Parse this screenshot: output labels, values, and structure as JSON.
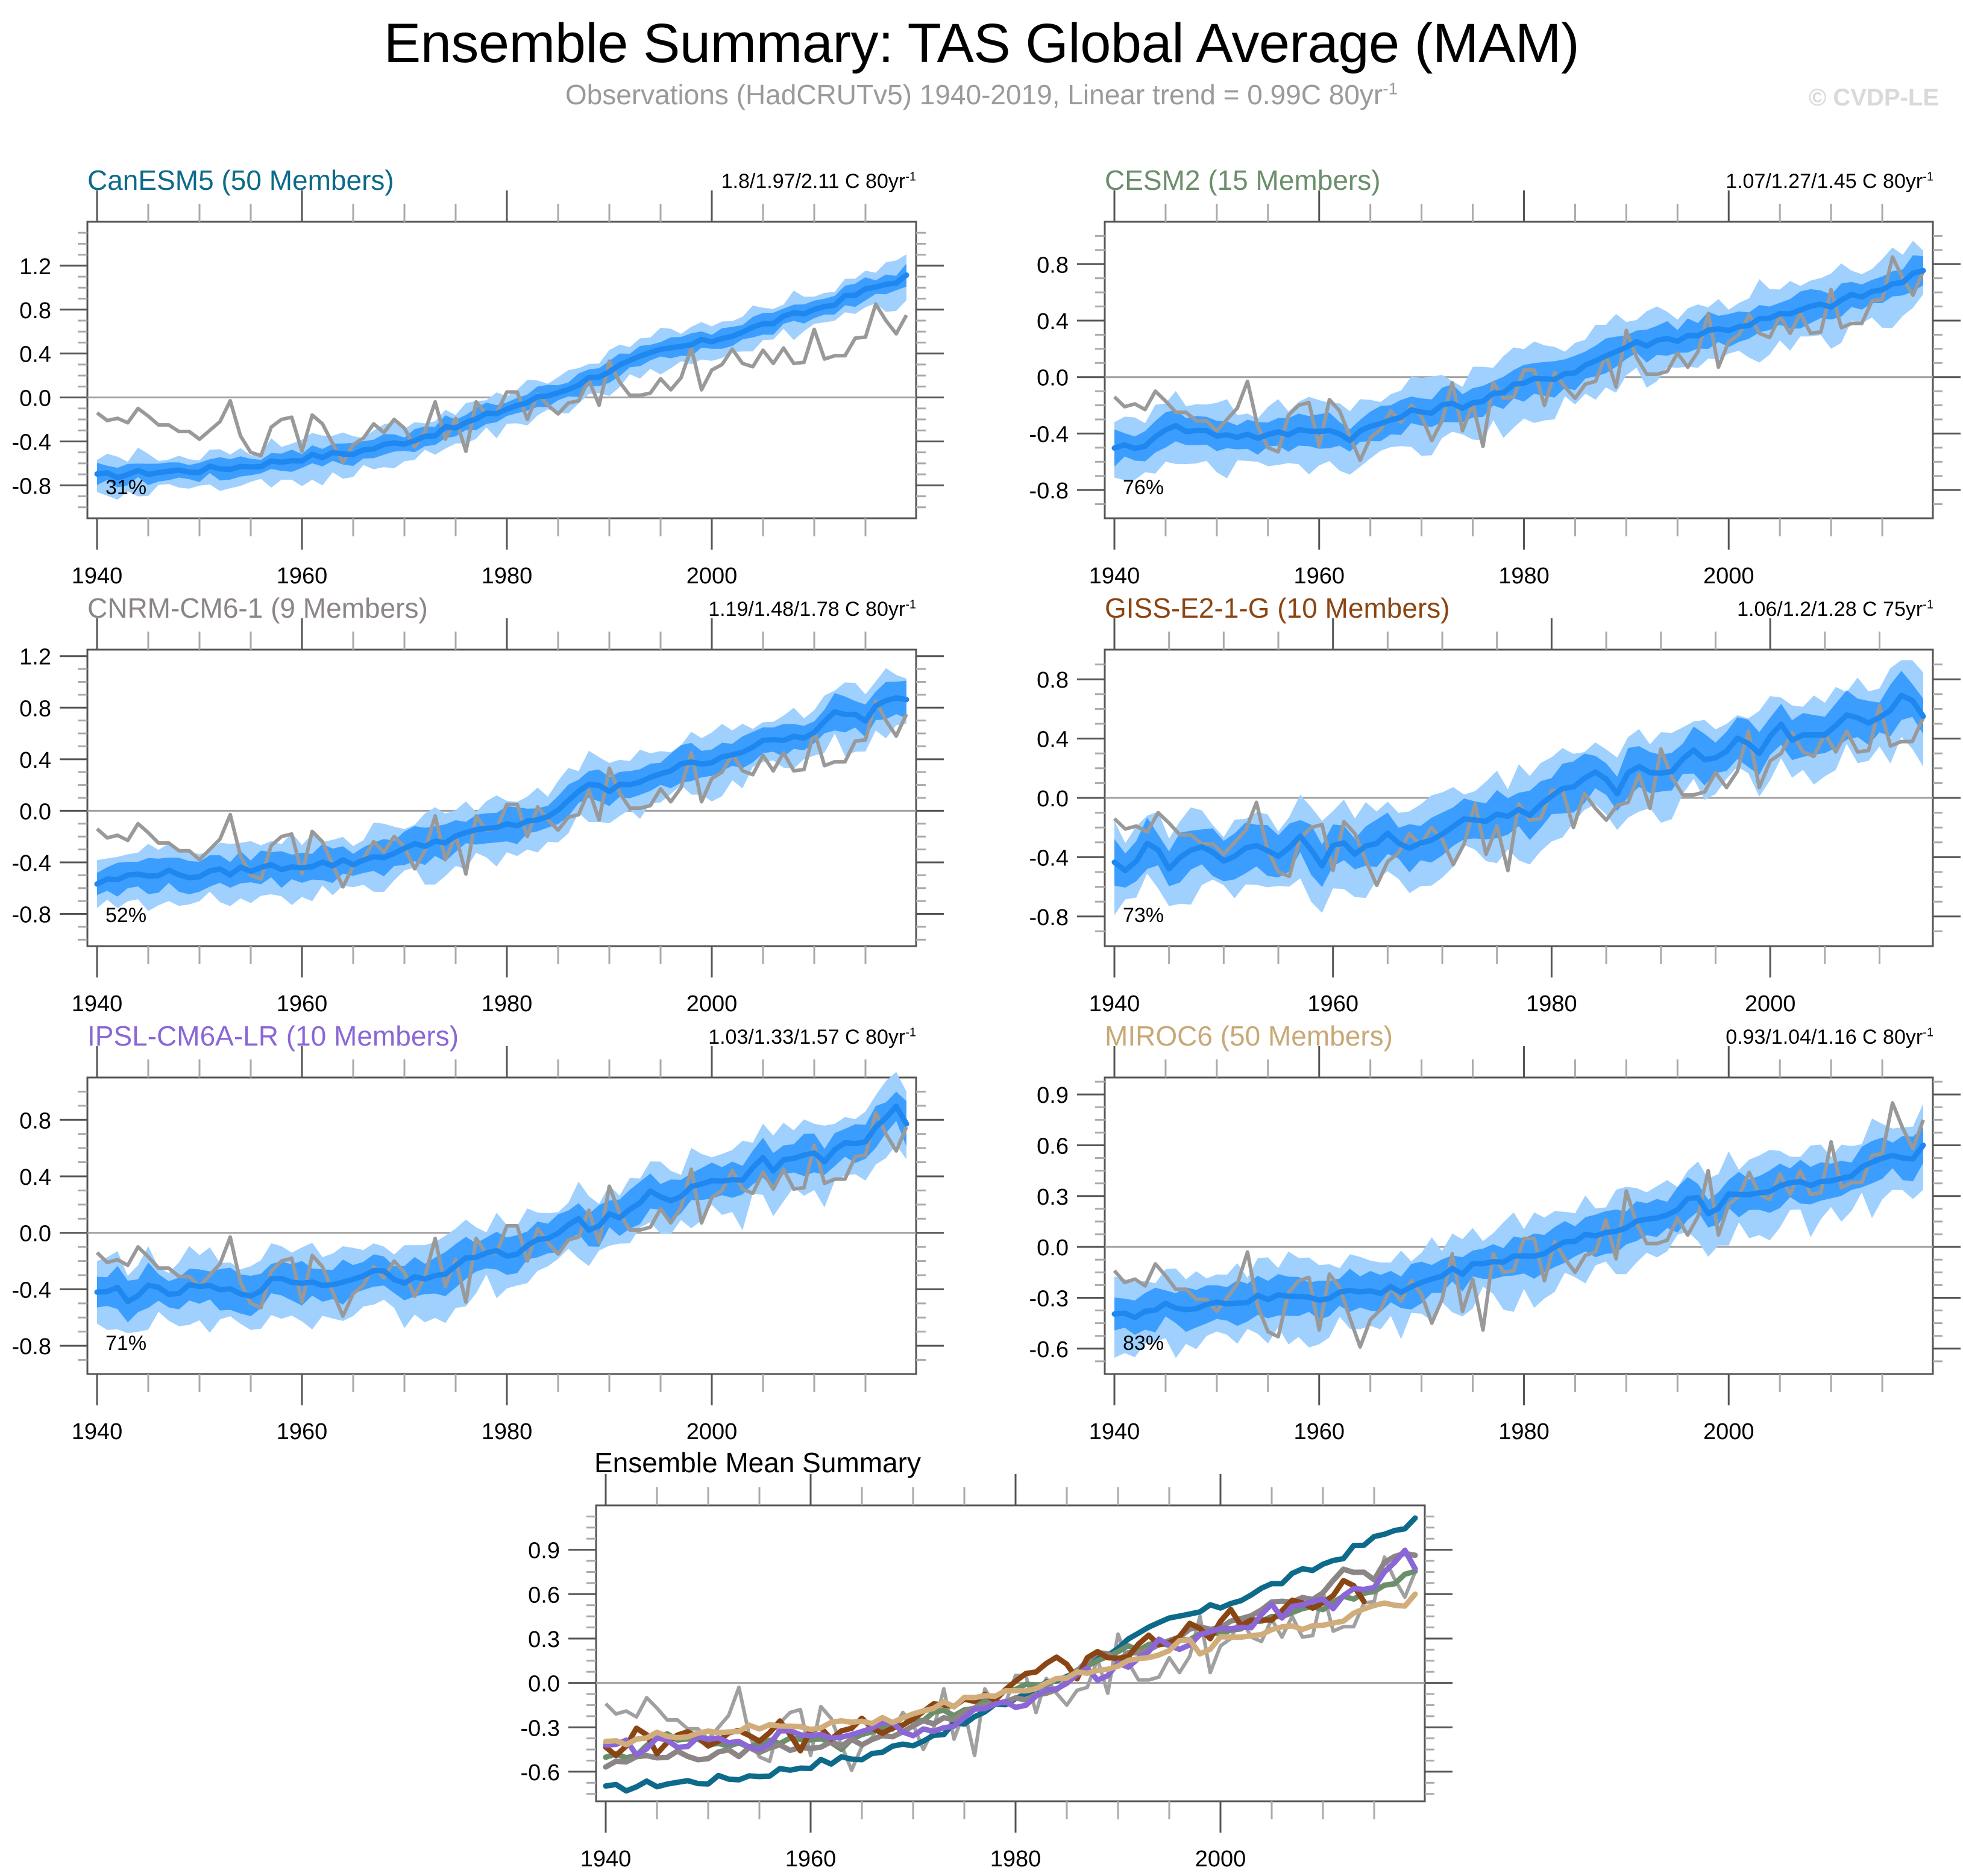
{
  "title": "Ensemble Summary: TAS Global Average (MAM)",
  "subtitle": "Observations (HadCRUTv5) 1940-2019, Linear trend = 0.99C 80yr",
  "subtitle_sup": "-1",
  "credit": "© CVDP-LE",
  "colors": {
    "band_outer": "#9fd0fe",
    "band_inner": "#3b9efe",
    "mean_line": "#1e88f0",
    "obs_line": "#999999",
    "zero_line": "#a0a0a0"
  },
  "chart_data": [
    {
      "type": "area",
      "name": "CanESM5",
      "title": "CanESM5 (50 Members)",
      "title_color": "#0d6a8a",
      "trend_text": "1.8/1.97/2.11 C 80yr",
      "trend_sup": "-1",
      "pct": "31%",
      "x_start": 1940,
      "x_end": 2019,
      "xticks": [
        "1940",
        "1960",
        "1980",
        "2000"
      ],
      "ylim": [
        -1.1,
        1.6
      ],
      "yticks": [
        "1.2",
        "0.8",
        "0.4",
        "0.0",
        "-0.4",
        "-0.8"
      ],
      "mean_knots": [
        [
          1940,
          -0.72
        ],
        [
          1945,
          -0.68
        ],
        [
          1950,
          -0.66
        ],
        [
          1955,
          -0.62
        ],
        [
          1960,
          -0.55
        ],
        [
          1965,
          -0.5
        ],
        [
          1970,
          -0.4
        ],
        [
          1975,
          -0.27
        ],
        [
          1980,
          -0.1
        ],
        [
          1985,
          0.05
        ],
        [
          1990,
          0.25
        ],
        [
          1995,
          0.42
        ],
        [
          2000,
          0.52
        ],
        [
          2005,
          0.66
        ],
        [
          2010,
          0.8
        ],
        [
          2015,
          0.97
        ],
        [
          2019,
          1.1
        ]
      ],
      "inner_halfwidth": 0.08,
      "outer_halfwidth": 0.15,
      "ylimits_order": "mean"
    },
    {
      "type": "area",
      "name": "CESM2",
      "title": "CESM2 (15 Members)",
      "title_color": "#6b8e6b",
      "trend_text": "1.07/1.27/1.45 C 80yr",
      "trend_sup": "-1",
      "pct": "76%",
      "x_start": 1940,
      "x_end": 2019,
      "xticks": [
        "1940",
        "1960",
        "1980",
        "2000"
      ],
      "ylim": [
        -1.0,
        1.1
      ],
      "yticks": [
        "0.8",
        "0.4",
        "0.0",
        "-0.4",
        "-0.8"
      ],
      "mean_knots": [
        [
          1940,
          -0.48
        ],
        [
          1942,
          -0.52
        ],
        [
          1945,
          -0.35
        ],
        [
          1950,
          -0.4
        ],
        [
          1955,
          -0.42
        ],
        [
          1960,
          -0.36
        ],
        [
          1963,
          -0.42
        ],
        [
          1967,
          -0.3
        ],
        [
          1970,
          -0.24
        ],
        [
          1975,
          -0.18
        ],
        [
          1980,
          -0.05
        ],
        [
          1985,
          0.05
        ],
        [
          1990,
          0.22
        ],
        [
          1995,
          0.28
        ],
        [
          2000,
          0.35
        ],
        [
          2005,
          0.43
        ],
        [
          2010,
          0.52
        ],
        [
          2015,
          0.62
        ],
        [
          2019,
          0.75
        ]
      ],
      "inner_halfwidth": 0.1,
      "outer_halfwidth": 0.2
    },
    {
      "type": "area",
      "name": "CNRM-CM6-1",
      "title": "CNRM-CM6-1 (9 Members)",
      "title_color": "#8c8585",
      "trend_text": "1.19/1.48/1.78 C 80yr",
      "trend_sup": "-1",
      "pct": "52%",
      "x_start": 1940,
      "x_end": 2019,
      "xticks": [
        "1940",
        "1960",
        "1980",
        "2000"
      ],
      "ylim": [
        -1.05,
        1.25
      ],
      "yticks": [
        "1.2",
        "0.8",
        "0.4",
        "0.0",
        "-0.4",
        "-0.8"
      ],
      "mean_knots": [
        [
          1940,
          -0.56
        ],
        [
          1945,
          -0.48
        ],
        [
          1950,
          -0.5
        ],
        [
          1955,
          -0.45
        ],
        [
          1960,
          -0.42
        ],
        [
          1965,
          -0.4
        ],
        [
          1970,
          -0.3
        ],
        [
          1975,
          -0.2
        ],
        [
          1980,
          -0.12
        ],
        [
          1985,
          -0.02
        ],
        [
          1988,
          0.22
        ],
        [
          1990,
          0.15
        ],
        [
          1995,
          0.3
        ],
        [
          2000,
          0.4
        ],
        [
          2005,
          0.52
        ],
        [
          2010,
          0.6
        ],
        [
          2012,
          0.75
        ],
        [
          2015,
          0.72
        ],
        [
          2017,
          0.88
        ],
        [
          2019,
          0.87
        ]
      ],
      "inner_halfwidth": 0.11,
      "outer_halfwidth": 0.19
    },
    {
      "type": "area",
      "name": "GISS-E2-1-G",
      "title": "GISS-E2-1-G (10 Members)",
      "title_color": "#8b4513",
      "trend_text": "1.06/1.2/1.28 C 75yr",
      "trend_sup": "-1",
      "pct": "73%",
      "x_start": 1940,
      "x_end": 2014,
      "xticks": [
        "1940",
        "1960",
        "1980",
        "2000"
      ],
      "ylim": [
        -1.0,
        1.0
      ],
      "yticks": [
        "0.8",
        "0.4",
        "0.0",
        "-0.4",
        "-0.8"
      ],
      "mean_knots": [
        [
          1940,
          -0.44
        ],
        [
          1941,
          -0.5
        ],
        [
          1943,
          -0.3
        ],
        [
          1945,
          -0.45
        ],
        [
          1948,
          -0.32
        ],
        [
          1950,
          -0.42
        ],
        [
          1953,
          -0.32
        ],
        [
          1955,
          -0.4
        ],
        [
          1957,
          -0.25
        ],
        [
          1959,
          -0.45
        ],
        [
          1960,
          -0.3
        ],
        [
          1962,
          -0.35
        ],
        [
          1965,
          -0.25
        ],
        [
          1967,
          -0.35
        ],
        [
          1970,
          -0.27
        ],
        [
          1972,
          -0.15
        ],
        [
          1975,
          -0.12
        ],
        [
          1978,
          -0.1
        ],
        [
          1980,
          0.04
        ],
        [
          1982,
          0.07
        ],
        [
          1984,
          0.18
        ],
        [
          1986,
          0.05
        ],
        [
          1988,
          0.24
        ],
        [
          1990,
          0.16
        ],
        [
          1993,
          0.3
        ],
        [
          1995,
          0.27
        ],
        [
          1997,
          0.4
        ],
        [
          1999,
          0.28
        ],
        [
          2001,
          0.5
        ],
        [
          2002,
          0.4
        ],
        [
          2005,
          0.45
        ],
        [
          2007,
          0.58
        ],
        [
          2009,
          0.5
        ],
        [
          2012,
          0.68
        ],
        [
          2014,
          0.58
        ]
      ],
      "inner_halfwidth": 0.13,
      "outer_halfwidth": 0.22
    },
    {
      "type": "area",
      "name": "IPSL-CM6A-LR",
      "title": "IPSL-CM6A-LR (10 Members)",
      "title_color": "#8a66d6",
      "trend_text": "1.03/1.33/1.57 C 80yr",
      "trend_sup": "-1",
      "pct": "71%",
      "x_start": 1940,
      "x_end": 2019,
      "xticks": [
        "1940",
        "1960",
        "1980",
        "2000"
      ],
      "ylim": [
        -1.0,
        1.1
      ],
      "yticks": [
        "0.8",
        "0.4",
        "0.0",
        "-0.4",
        "-0.8"
      ],
      "mean_knots": [
        [
          1940,
          -0.44
        ],
        [
          1942,
          -0.4
        ],
        [
          1943,
          -0.46
        ],
        [
          1945,
          -0.4
        ],
        [
          1947,
          -0.43
        ],
        [
          1950,
          -0.38
        ],
        [
          1953,
          -0.42
        ],
        [
          1955,
          -0.42
        ],
        [
          1957,
          -0.35
        ],
        [
          1960,
          -0.34
        ],
        [
          1963,
          -0.37
        ],
        [
          1965,
          -0.31
        ],
        [
          1968,
          -0.27
        ],
        [
          1970,
          -0.34
        ],
        [
          1973,
          -0.28
        ],
        [
          1975,
          -0.25
        ],
        [
          1977,
          -0.15
        ],
        [
          1980,
          -0.15
        ],
        [
          1983,
          -0.07
        ],
        [
          1985,
          0.0
        ],
        [
          1987,
          0.12
        ],
        [
          1988,
          0.0
        ],
        [
          1990,
          0.12
        ],
        [
          1992,
          0.14
        ],
        [
          1994,
          0.28
        ],
        [
          1996,
          0.2
        ],
        [
          1998,
          0.35
        ],
        [
          2000,
          0.35
        ],
        [
          2003,
          0.4
        ],
        [
          2005,
          0.55
        ],
        [
          2006,
          0.45
        ],
        [
          2009,
          0.58
        ],
        [
          2011,
          0.52
        ],
        [
          2013,
          0.65
        ],
        [
          2015,
          0.65
        ],
        [
          2017,
          0.8
        ],
        [
          2018,
          0.87
        ],
        [
          2019,
          0.8
        ]
      ],
      "inner_halfwidth": 0.12,
      "outer_halfwidth": 0.2
    },
    {
      "type": "area",
      "name": "MIROC6",
      "title": "MIROC6 (50 Members)",
      "title_color": "#c9a877",
      "trend_text": "0.93/1.04/1.16 C 80yr",
      "trend_sup": "-1",
      "pct": "83%",
      "x_start": 1940,
      "x_end": 2019,
      "xticks": [
        "1940",
        "1960",
        "1980",
        "2000"
      ],
      "ylim": [
        -0.75,
        1.0
      ],
      "yticks": [
        "0.9",
        "0.6",
        "0.3",
        "0.0",
        "-0.3",
        "-0.6"
      ],
      "mean_knots": [
        [
          1940,
          -0.37
        ],
        [
          1942,
          -0.41
        ],
        [
          1945,
          -0.36
        ],
        [
          1950,
          -0.33
        ],
        [
          1955,
          -0.31
        ],
        [
          1958,
          -0.28
        ],
        [
          1960,
          -0.3
        ],
        [
          1962,
          -0.27
        ],
        [
          1965,
          -0.27
        ],
        [
          1968,
          -0.25
        ],
        [
          1970,
          -0.21
        ],
        [
          1973,
          -0.15
        ],
        [
          1975,
          -0.12
        ],
        [
          1977,
          -0.07
        ],
        [
          1980,
          -0.05
        ],
        [
          1982,
          -0.05
        ],
        [
          1983,
          0.02
        ],
        [
          1985,
          0.05
        ],
        [
          1988,
          0.08
        ],
        [
          1990,
          0.09
        ],
        [
          1991,
          0.17
        ],
        [
          1993,
          0.19
        ],
        [
          1995,
          0.19
        ],
        [
          1996,
          0.27
        ],
        [
          1997,
          0.27
        ],
        [
          1998,
          0.21
        ],
        [
          2000,
          0.3
        ],
        [
          2003,
          0.32
        ],
        [
          2005,
          0.37
        ],
        [
          2008,
          0.38
        ],
        [
          2010,
          0.4
        ],
        [
          2012,
          0.42
        ],
        [
          2015,
          0.55
        ],
        [
          2016,
          0.57
        ],
        [
          2017,
          0.52
        ],
        [
          2018,
          0.51
        ],
        [
          2019,
          0.58
        ]
      ],
      "inner_halfwidth": 0.1,
      "outer_halfwidth": 0.19
    },
    {
      "type": "line",
      "name": "Ensemble Mean Summary",
      "title": "Ensemble Mean Summary",
      "xticks": [
        "1940",
        "1960",
        "1980",
        "2000"
      ],
      "x_start": 1940,
      "x_end": 2019,
      "ylim": [
        -0.8,
        1.2
      ],
      "yticks": [
        "0.9",
        "0.6",
        "0.3",
        "0.0",
        "-0.3",
        "-0.6"
      ],
      "series": [
        {
          "name": "Observations",
          "color": "#a0a0a0",
          "ref": "obs"
        },
        {
          "name": "CanESM5",
          "color": "#0d6a8a",
          "ref": 0
        },
        {
          "name": "CESM2",
          "color": "#6b8e6b",
          "ref": 1
        },
        {
          "name": "CNRM-CM6-1",
          "color": "#8c8585",
          "ref": 2
        },
        {
          "name": "GISS-E2-1-G",
          "color": "#8b4513",
          "ref": 3
        },
        {
          "name": "IPSL-CM6A-LR",
          "color": "#8a66d6",
          "ref": 4
        },
        {
          "name": "MIROC6",
          "color": "#d2ad7c",
          "ref": 5
        }
      ]
    }
  ],
  "observations": {
    "name": "HadCRUTv5",
    "start_year": 1940,
    "values": [
      -0.14,
      -0.21,
      -0.19,
      -0.23,
      -0.1,
      -0.17,
      -0.25,
      -0.25,
      -0.31,
      -0.31,
      -0.38,
      -0.3,
      -0.22,
      -0.03,
      -0.35,
      -0.5,
      -0.53,
      -0.27,
      -0.2,
      -0.18,
      -0.49,
      -0.16,
      -0.24,
      -0.42,
      -0.59,
      -0.43,
      -0.37,
      -0.24,
      -0.32,
      -0.2,
      -0.28,
      -0.45,
      -0.31,
      -0.04,
      -0.38,
      -0.19,
      -0.49,
      -0.04,
      -0.15,
      -0.14,
      0.05,
      0.05,
      -0.2,
      0.03,
      -0.07,
      -0.15,
      -0.05,
      -0.03,
      0.16,
      -0.07,
      0.33,
      0.14,
      0.02,
      0.02,
      0.04,
      0.17,
      0.07,
      0.18,
      0.45,
      0.07,
      0.25,
      0.3,
      0.44,
      0.31,
      0.28,
      0.43,
      0.31,
      0.45,
      0.31,
      0.32,
      0.62,
      0.35,
      0.38,
      0.38,
      0.54,
      0.55,
      0.85,
      0.7,
      0.58,
      0.75
    ]
  }
}
